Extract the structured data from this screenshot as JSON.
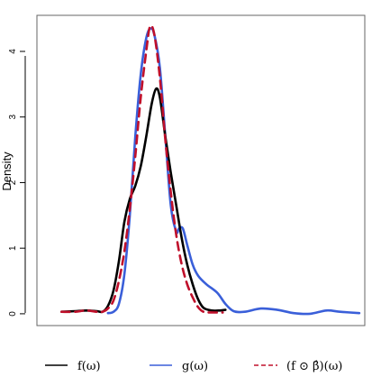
{
  "chart_data": {
    "type": "line",
    "title": "",
    "xlabel": "",
    "ylabel": "Density",
    "ylim": [
      -0.18,
      4.55
    ],
    "xlim": [
      -3.0,
      3.0
    ],
    "yticks": [
      "0",
      "1",
      "2",
      "3",
      "4"
    ],
    "x_ticks_shown": false,
    "grid": false,
    "legend": {
      "placement": "bottom"
    },
    "series": [
      {
        "name": "f(ω)",
        "color": "#000000",
        "dash": "solid",
        "points": [
          [
            -2.55,
            0.03
          ],
          [
            -2.3,
            0.04
          ],
          [
            -2.1,
            0.05
          ],
          [
            -1.9,
            0.04
          ],
          [
            -1.8,
            0.03
          ],
          [
            -1.7,
            0.12
          ],
          [
            -1.6,
            0.35
          ],
          [
            -1.5,
            0.8
          ],
          [
            -1.4,
            1.4
          ],
          [
            -1.3,
            1.75
          ],
          [
            -1.2,
            1.95
          ],
          [
            -1.1,
            2.25
          ],
          [
            -1.0,
            2.7
          ],
          [
            -0.9,
            3.2
          ],
          [
            -0.82,
            3.43
          ],
          [
            -0.75,
            3.3
          ],
          [
            -0.65,
            2.7
          ],
          [
            -0.55,
            2.15
          ],
          [
            -0.45,
            1.65
          ],
          [
            -0.35,
            1.15
          ],
          [
            -0.25,
            0.75
          ],
          [
            -0.15,
            0.45
          ],
          [
            -0.05,
            0.22
          ],
          [
            0.05,
            0.09
          ],
          [
            0.2,
            0.05
          ],
          [
            0.35,
            0.05
          ],
          [
            0.45,
            0.06
          ]
        ]
      },
      {
        "name": "g(ω)",
        "color": "#3a5fd9",
        "dash": "solid",
        "points": [
          [
            -1.7,
            0.01
          ],
          [
            -1.6,
            0.03
          ],
          [
            -1.5,
            0.15
          ],
          [
            -1.4,
            0.6
          ],
          [
            -1.3,
            1.5
          ],
          [
            -1.2,
            2.7
          ],
          [
            -1.1,
            3.65
          ],
          [
            -1.0,
            4.2
          ],
          [
            -0.92,
            4.35
          ],
          [
            -0.85,
            4.25
          ],
          [
            -0.75,
            3.75
          ],
          [
            -0.65,
            2.7
          ],
          [
            -0.55,
            1.65
          ],
          [
            -0.45,
            1.25
          ],
          [
            -0.4,
            1.3
          ],
          [
            -0.33,
            1.3
          ],
          [
            -0.25,
            1.05
          ],
          [
            -0.15,
            0.75
          ],
          [
            -0.05,
            0.58
          ],
          [
            0.1,
            0.45
          ],
          [
            0.3,
            0.32
          ],
          [
            0.45,
            0.15
          ],
          [
            0.6,
            0.04
          ],
          [
            0.8,
            0.03
          ],
          [
            1.1,
            0.08
          ],
          [
            1.4,
            0.06
          ],
          [
            1.7,
            0.01
          ],
          [
            2.0,
            0.0
          ],
          [
            2.3,
            0.05
          ],
          [
            2.55,
            0.03
          ],
          [
            2.9,
            0.01
          ]
        ]
      },
      {
        "name": "(f ⊙ β̂)(ω)",
        "color": "#c0102b",
        "dash": "dashed",
        "points": [
          [
            -2.55,
            0.03
          ],
          [
            -2.3,
            0.03
          ],
          [
            -2.1,
            0.05
          ],
          [
            -1.9,
            0.03
          ],
          [
            -1.8,
            0.03
          ],
          [
            -1.7,
            0.08
          ],
          [
            -1.6,
            0.2
          ],
          [
            -1.5,
            0.5
          ],
          [
            -1.4,
            0.95
          ],
          [
            -1.3,
            1.6
          ],
          [
            -1.2,
            2.4
          ],
          [
            -1.1,
            3.3
          ],
          [
            -1.0,
            4.0
          ],
          [
            -0.93,
            4.38
          ],
          [
            -0.85,
            4.25
          ],
          [
            -0.75,
            3.6
          ],
          [
            -0.65,
            2.65
          ],
          [
            -0.55,
            1.85
          ],
          [
            -0.45,
            1.2
          ],
          [
            -0.35,
            0.75
          ],
          [
            -0.25,
            0.45
          ],
          [
            -0.15,
            0.25
          ],
          [
            -0.05,
            0.1
          ],
          [
            0.05,
            0.03
          ],
          [
            0.2,
            0.02
          ],
          [
            0.4,
            0.02
          ]
        ]
      }
    ]
  }
}
